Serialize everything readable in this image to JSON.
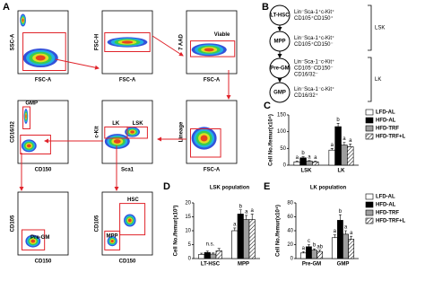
{
  "flow": {
    "panel": "A",
    "plots": [
      {
        "y_label": "SSC-A",
        "x_label": "FSC-A",
        "gates": []
      },
      {
        "y_label": "FSC-H",
        "x_label": "FSC-A",
        "gates": []
      },
      {
        "y_label": "7 AAD",
        "x_label": "FSC-A",
        "gates": [
          "Viable"
        ]
      },
      {
        "y_label": "CD16/32",
        "x_label": "CD150",
        "gates": [
          "GMP"
        ]
      },
      {
        "y_label": "c-Kit",
        "x_label": "Sca1",
        "gates": [
          "LK",
          "LSK"
        ]
      },
      {
        "y_label": "Lineage",
        "x_label": "FSC-A",
        "gates": []
      },
      {
        "y_label": "CD105",
        "x_label": "CD150",
        "gates": [
          "Pre-GM"
        ]
      },
      {
        "y_label": "CD105",
        "x_label": "CD150",
        "gates": [
          "MPP",
          "HSC"
        ]
      }
    ]
  },
  "hierarchy": {
    "panel": "B",
    "nodes": [
      {
        "label": "LT-HSC",
        "markers": [
          "Lin⁻Sca-1⁺c-Kit⁺",
          "CD105⁺CD150⁺"
        ]
      },
      {
        "label": "MPP",
        "markers": [
          "Lin⁻Sca-1⁺c-Kit⁺",
          "CD105⁺CD150⁻"
        ]
      },
      {
        "label": "Pre-GM",
        "markers": [
          "Lin⁻Sca-1⁻c-Kit⁺",
          "CD105⁻CD150⁻",
          "CD16/32⁻"
        ]
      },
      {
        "label": "GMP",
        "markers": [
          "Lin⁻Sca-1⁻c-Kit⁺",
          "CD16/32⁺"
        ]
      }
    ],
    "groups": [
      "LSK",
      "LK"
    ]
  },
  "chart_data": [
    {
      "type": "bar",
      "panel": "C",
      "y_label": "Cell No./femur(x10⁴)",
      "categories": [
        "LSK",
        "LK"
      ],
      "ylim": [
        0,
        150
      ],
      "yticks": [
        0,
        50,
        100,
        150
      ],
      "legend": "right",
      "series": [
        {
          "name": "LFD-AL",
          "color": "#ffffff",
          "values": [
            10,
            45
          ],
          "errors": [
            2,
            5
          ],
          "letters": [
            "a",
            "a"
          ]
        },
        {
          "name": "HFD-AL",
          "color": "#000000",
          "values": [
            22,
            115
          ],
          "errors": [
            3,
            10
          ],
          "letters": [
            "b",
            "b"
          ]
        },
        {
          "name": "HFD-TRF",
          "color": "#9e9e9e",
          "values": [
            12,
            60
          ],
          "errors": [
            2,
            8
          ],
          "letters": [
            "a",
            "a"
          ]
        },
        {
          "name": "HFD-TRF+L",
          "color": "#ffffff",
          "pattern": "hatch",
          "values": [
            10,
            55
          ],
          "errors": [
            2,
            8
          ],
          "letters": [
            "a",
            "a"
          ]
        }
      ]
    },
    {
      "type": "bar",
      "panel": "D",
      "title": "LSK population",
      "y_label": "Cell No./femur(x10³)",
      "categories": [
        "LT-HSC",
        "MPP"
      ],
      "category_notes": [
        "n.s.",
        null
      ],
      "ylim": [
        0,
        20
      ],
      "yticks": [
        0,
        5,
        10,
        15,
        20
      ],
      "series": [
        {
          "name": "LFD-AL",
          "color": "#ffffff",
          "values": [
            1.5,
            10
          ],
          "errors": [
            0.4,
            1
          ],
          "letters": [
            null,
            "a"
          ]
        },
        {
          "name": "HFD-AL",
          "color": "#000000",
          "values": [
            2.2,
            16
          ],
          "errors": [
            0.5,
            1.5
          ],
          "letters": [
            null,
            "b"
          ]
        },
        {
          "name": "HFD-TRF",
          "color": "#9e9e9e",
          "values": [
            1.6,
            14
          ],
          "errors": [
            0.4,
            1.5
          ],
          "letters": [
            null,
            "a"
          ]
        },
        {
          "name": "HFD-TRF+L",
          "color": "#ffffff",
          "pattern": "hatch",
          "values": [
            2.8,
            14
          ],
          "errors": [
            0.8,
            2
          ],
          "letters": [
            null,
            "a"
          ]
        }
      ]
    },
    {
      "type": "bar",
      "panel": "E",
      "title": "LK population",
      "y_label": "Cell No./femur(x10⁴)",
      "categories": [
        "Pre-GM",
        "GMP"
      ],
      "ylim": [
        0,
        80
      ],
      "yticks": [
        0,
        20,
        40,
        60,
        80
      ],
      "legend": "right",
      "series": [
        {
          "name": "LFD-AL",
          "color": "#ffffff",
          "values": [
            8,
            30
          ],
          "errors": [
            2,
            4
          ],
          "letters": [
            "a",
            "a"
          ]
        },
        {
          "name": "HFD-AL",
          "color": "#000000",
          "values": [
            17,
            55
          ],
          "errors": [
            3,
            8
          ],
          "letters": [
            "c",
            "b"
          ]
        },
        {
          "name": "HFD-TRF",
          "color": "#9e9e9e",
          "values": [
            12,
            35
          ],
          "errors": [
            2,
            5
          ],
          "letters": [
            "b",
            "a"
          ]
        },
        {
          "name": "HFD-TRF+L",
          "color": "#ffffff",
          "pattern": "hatch",
          "values": [
            10,
            28
          ],
          "errors": [
            2,
            4
          ],
          "letters": [
            "ab",
            "a"
          ]
        }
      ]
    }
  ]
}
